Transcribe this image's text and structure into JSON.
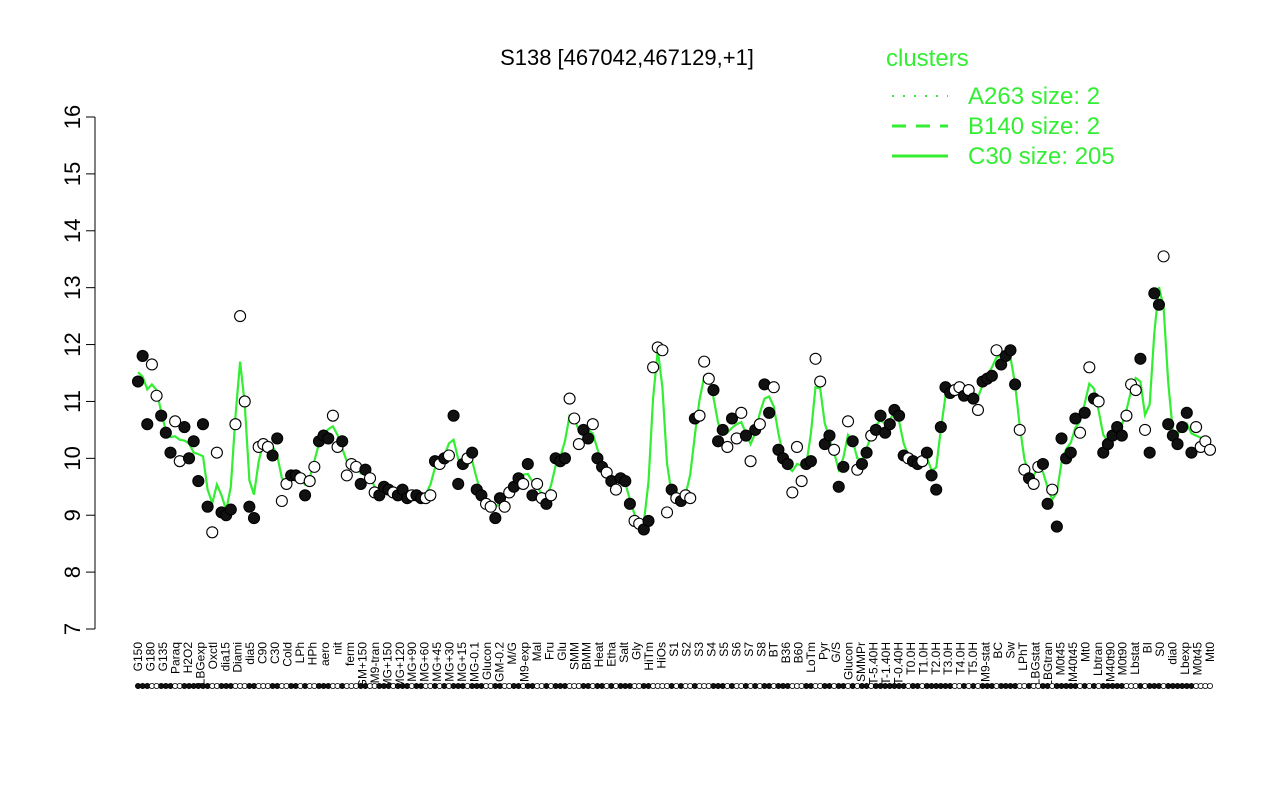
{
  "chart_data": {
    "type": "line",
    "title": "S138 [467042,467129,+1]",
    "xlabel": "",
    "ylabel": "",
    "ylim": [
      7,
      16
    ],
    "y_ticks": [
      "7",
      "8",
      "9",
      "10",
      "11",
      "12",
      "13",
      "14",
      "15",
      "16"
    ],
    "x_tick_labels": [
      "G150",
      "G180",
      "G135",
      "Paraq",
      "H2O2",
      "LBGexp",
      "Oxctl",
      "dia15",
      "Diami",
      "dia5",
      "C90",
      "C30",
      "Cold",
      "LPh",
      "HPh",
      "aero",
      "nit",
      "ferm",
      "GM+150",
      "M9-tran",
      "MG+150",
      "MG+120",
      "MG+90",
      "MG+60",
      "MG+45",
      "MG+30",
      "MG+15",
      "MG-0.1",
      "Glucon",
      "GM-0.2",
      "M/G",
      "M9-exp",
      "Mal",
      "Fru",
      "Glu",
      "SMM",
      "BMM",
      "Heat",
      "Etha",
      "Salt",
      "Gly",
      "HiTm",
      "HiOs",
      "S1",
      "S2",
      "S3",
      "S4",
      "S5",
      "S6",
      "S7",
      "S8",
      "BT",
      "B36",
      "B60",
      "LoTm",
      "Pyr",
      "G/S",
      "Glucon",
      "SMMPr",
      "T-5.40H",
      "T-1.40H",
      "T-0.40H",
      "T0.0H",
      "T1.0H",
      "T2.0H",
      "T3.0H",
      "T4.0H",
      "T5.0H",
      "M9-stat",
      "BC",
      "Sw",
      "LPhT",
      "LBGstat",
      "LBGtran",
      "M0t45",
      "M40t45",
      "Mt0",
      "Lbtran",
      "M40t90",
      "M0t90",
      "Lbstat",
      "BI",
      "S0",
      "dia0",
      "Lbexp",
      "M0t45",
      "Mt0"
    ],
    "legend": {
      "title": "clusters",
      "position": "top-right",
      "entries": [
        {
          "label": "A263 size: 2",
          "style": "dotted"
        },
        {
          "label": "B140 size: 2",
          "style": "dashed"
        },
        {
          "label": "C30 size: 205",
          "style": "solid"
        }
      ]
    },
    "colors": {
      "cluster_line": "#33ee33",
      "point_edge": "#000000",
      "point_filled": "#111111",
      "point_open": "#ffffff"
    },
    "series": [
      {
        "name": "S138",
        "values": [
          11.35,
          11.8,
          10.6,
          11.65,
          11.1,
          10.75,
          10.45,
          10.1,
          10.65,
          9.95,
          10.55,
          10.0,
          10.3,
          9.6,
          10.6,
          9.15,
          8.7,
          10.1,
          9.05,
          9.0,
          9.1,
          10.6,
          12.5,
          11.0,
          9.15,
          8.95,
          10.2,
          10.25,
          10.2,
          10.05,
          10.35,
          9.25,
          9.55,
          9.7,
          9.7,
          9.65,
          9.35,
          9.6,
          9.85,
          10.3,
          10.4,
          10.35,
          10.75,
          10.2,
          10.3,
          9.7,
          9.9,
          9.85,
          9.55,
          9.8,
          9.65,
          9.4,
          9.35,
          9.5,
          9.45,
          9.4,
          9.35,
          9.45,
          9.3,
          9.35,
          9.35,
          9.3,
          9.3,
          9.35,
          9.95,
          9.9,
          10.0,
          10.05,
          10.75,
          9.55,
          9.9,
          10.0,
          10.1,
          9.45,
          9.35,
          9.2,
          9.15,
          8.95,
          9.3,
          9.15,
          9.4,
          9.5,
          9.65,
          9.55,
          9.9,
          9.35,
          9.55,
          9.3,
          9.2,
          9.35,
          10.0,
          9.95,
          10.0,
          11.05,
          10.7,
          10.25,
          10.5,
          10.35,
          10.6,
          10.0,
          9.85,
          9.75,
          9.6,
          9.45,
          9.65,
          9.6,
          9.2,
          8.9,
          8.85,
          8.75,
          8.9,
          11.6,
          11.95,
          11.9,
          9.05,
          9.45,
          9.3,
          9.25,
          9.35,
          9.3,
          10.7,
          10.75,
          11.7,
          11.4,
          11.2,
          10.3,
          10.5,
          10.2,
          10.7,
          10.35,
          10.8,
          10.4,
          9.95,
          10.5,
          10.6,
          11.3,
          10.8,
          11.25,
          10.15,
          10.0,
          9.9,
          9.4,
          10.2,
          9.6,
          9.9,
          9.95,
          11.75,
          11.35,
          10.25,
          10.4,
          10.15,
          9.5,
          9.85,
          10.65,
          10.3,
          9.8,
          9.9,
          10.1,
          10.4,
          10.5,
          10.75,
          10.45,
          10.6,
          10.85,
          10.75,
          10.05,
          10.0,
          9.95,
          9.9,
          9.95,
          10.1,
          9.7,
          9.45,
          10.55,
          11.25,
          11.15,
          11.2,
          11.25,
          11.1,
          11.2,
          11.05,
          10.85,
          11.35,
          11.4,
          11.45,
          11.9,
          11.65,
          11.8,
          11.9,
          11.3,
          10.5,
          9.8,
          9.65,
          9.55,
          9.85,
          9.9,
          9.2,
          9.45,
          8.8,
          10.35,
          10.0,
          10.1,
          10.7,
          10.45,
          10.8,
          11.6,
          11.05,
          11.0,
          10.1,
          10.25,
          10.4,
          10.55,
          10.4,
          10.75,
          11.3,
          11.2,
          11.75,
          10.5,
          10.1,
          12.9,
          12.7,
          13.55,
          10.6,
          10.4,
          10.25,
          10.55,
          10.8,
          10.1,
          10.55,
          10.2,
          10.3,
          10.15
        ],
        "filled": [
          1,
          1,
          1,
          0,
          0,
          1,
          1,
          1,
          0,
          0,
          1,
          1,
          1,
          1,
          1,
          1,
          0,
          0,
          1,
          1,
          1,
          0,
          0,
          0,
          1,
          1,
          0,
          0,
          0,
          1,
          1,
          0,
          0,
          1,
          1,
          0,
          1,
          0,
          0,
          1,
          1,
          1,
          0,
          0,
          1,
          0,
          0,
          0,
          1,
          1,
          0,
          0,
          1,
          1,
          1,
          0,
          1,
          1,
          1,
          0,
          1,
          1,
          0,
          0,
          1,
          0,
          1,
          0,
          1,
          1,
          1,
          0,
          1,
          1,
          1,
          0,
          0,
          1,
          1,
          0,
          0,
          1,
          1,
          0,
          1,
          1,
          0,
          0,
          1,
          0,
          1,
          1,
          1,
          0,
          0,
          0,
          1,
          1,
          0,
          1,
          1,
          0,
          1,
          0,
          1,
          1,
          1,
          0,
          0,
          1,
          1,
          0,
          0,
          0,
          0,
          1,
          0,
          1,
          0,
          0,
          1,
          0,
          0,
          0,
          1,
          1,
          1,
          0,
          1,
          0,
          0,
          1,
          0,
          1,
          0,
          1,
          1,
          0,
          1,
          1,
          1,
          0,
          0,
          0,
          1,
          1,
          0,
          0,
          1,
          1,
          0,
          1,
          1,
          0,
          1,
          0,
          1,
          1,
          0,
          1,
          1,
          1,
          1,
          1,
          1,
          1,
          0,
          1,
          1,
          0,
          1,
          1,
          1,
          1,
          1,
          1,
          0,
          0,
          1,
          0,
          1,
          0,
          1,
          1,
          1,
          0,
          1,
          1,
          1,
          1,
          0,
          0,
          1,
          0,
          0,
          1,
          1,
          0,
          1,
          1,
          1,
          1,
          1,
          0,
          1,
          0,
          1,
          0,
          1,
          1,
          1,
          1,
          1,
          0,
          0,
          0,
          1,
          0,
          1,
          1,
          1,
          0,
          1,
          1,
          1,
          1,
          1,
          1
        ]
      }
    ]
  }
}
